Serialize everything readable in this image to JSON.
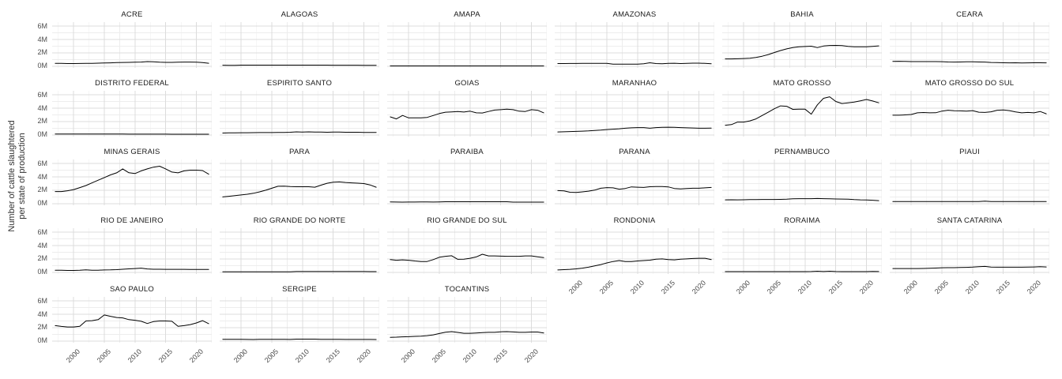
{
  "figure": {
    "y_axis_title_lines": [
      "Number of cattle slaughtered",
      "per state of production"
    ]
  },
  "chart_data": {
    "type": "line",
    "title": "",
    "xlabel": "",
    "ylabel": "Number of cattle slaughtered per state of production",
    "facet_by": "state",
    "facet_columns": 6,
    "legend": "none",
    "grid": true,
    "line_color": "#000000",
    "grid_major_color": "#dcdcdc",
    "grid_minor_color": "#ededed",
    "unit": "millions of cattle (M)",
    "xlim": [
      1996.5,
      2022.5
    ],
    "ylim": [
      -0.25,
      6.6
    ],
    "x_major": [
      2000,
      2005,
      2010,
      2015,
      2020
    ],
    "x_minor": [
      1997.5,
      2002.5,
      2007.5,
      2012.5,
      2017.5,
      2022.5
    ],
    "x_tick_labels": [
      "2000",
      "2005",
      "2010",
      "2015",
      "2020"
    ],
    "y_major": [
      0,
      2,
      4,
      6
    ],
    "y_minor": [
      1,
      3,
      5
    ],
    "y_tick_labels": [
      "0M",
      "2M",
      "4M",
      "6M"
    ],
    "x_years": [
      1997,
      1998,
      1999,
      2000,
      2001,
      2002,
      2003,
      2004,
      2005,
      2006,
      2007,
      2008,
      2009,
      2010,
      2011,
      2012,
      2013,
      2014,
      2015,
      2016,
      2017,
      2018,
      2019,
      2020,
      2021,
      2022
    ],
    "series": [
      {
        "name": "ACRE",
        "values": [
          0.44,
          0.42,
          0.4,
          0.4,
          0.41,
          0.42,
          0.44,
          0.46,
          0.48,
          0.5,
          0.54,
          0.56,
          0.58,
          0.6,
          0.62,
          0.7,
          0.66,
          0.6,
          0.58,
          0.58,
          0.6,
          0.62,
          0.62,
          0.6,
          0.55,
          0.45
        ]
      },
      {
        "name": "ALAGOAS",
        "values": [
          0.15,
          0.14,
          0.13,
          0.16,
          0.16,
          0.16,
          0.16,
          0.16,
          0.16,
          0.16,
          0.16,
          0.16,
          0.16,
          0.16,
          0.16,
          0.16,
          0.16,
          0.16,
          0.15,
          0.15,
          0.15,
          0.15,
          0.15,
          0.14,
          0.14,
          0.14
        ]
      },
      {
        "name": "AMAPA",
        "values": [
          0.05,
          0.05,
          0.05,
          0.05,
          0.05,
          0.05,
          0.05,
          0.05,
          0.05,
          0.05,
          0.05,
          0.05,
          0.05,
          0.05,
          0.05,
          0.05,
          0.05,
          0.05,
          0.05,
          0.05,
          0.05,
          0.05,
          0.05,
          0.05,
          0.05,
          0.05
        ]
      },
      {
        "name": "AMAZONAS",
        "values": [
          0.4,
          0.4,
          0.41,
          0.41,
          0.42,
          0.42,
          0.42,
          0.43,
          0.42,
          0.3,
          0.3,
          0.3,
          0.3,
          0.32,
          0.38,
          0.52,
          0.4,
          0.38,
          0.42,
          0.45,
          0.4,
          0.44,
          0.46,
          0.46,
          0.42,
          0.38
        ]
      },
      {
        "name": "BAHIA",
        "values": [
          1.1,
          1.1,
          1.12,
          1.15,
          1.2,
          1.32,
          1.5,
          1.75,
          2.05,
          2.35,
          2.6,
          2.8,
          2.9,
          2.95,
          3.0,
          2.78,
          3.02,
          3.1,
          3.12,
          3.08,
          2.98,
          2.92,
          2.9,
          2.92,
          2.98,
          3.05
        ]
      },
      {
        "name": "CEARA",
        "values": [
          0.72,
          0.74,
          0.72,
          0.7,
          0.7,
          0.7,
          0.7,
          0.7,
          0.68,
          0.64,
          0.62,
          0.64,
          0.66,
          0.66,
          0.64,
          0.62,
          0.56,
          0.55,
          0.52,
          0.5,
          0.52,
          0.48,
          0.5,
          0.52,
          0.52,
          0.5
        ]
      },
      {
        "name": "DISTRITO FEDERAL",
        "values": [
          0.14,
          0.14,
          0.14,
          0.14,
          0.14,
          0.14,
          0.14,
          0.14,
          0.14,
          0.13,
          0.13,
          0.13,
          0.12,
          0.12,
          0.12,
          0.12,
          0.12,
          0.12,
          0.12,
          0.11,
          0.11,
          0.11,
          0.1,
          0.1,
          0.1,
          0.1
        ]
      },
      {
        "name": "ESPIRITO SANTO",
        "values": [
          0.28,
          0.3,
          0.32,
          0.33,
          0.33,
          0.34,
          0.35,
          0.35,
          0.35,
          0.36,
          0.38,
          0.4,
          0.46,
          0.42,
          0.46,
          0.44,
          0.42,
          0.4,
          0.43,
          0.42,
          0.4,
          0.4,
          0.4,
          0.38,
          0.38,
          0.38
        ]
      },
      {
        "name": "GOIAS",
        "values": [
          2.7,
          2.4,
          2.92,
          2.55,
          2.55,
          2.55,
          2.62,
          2.9,
          3.2,
          3.4,
          3.45,
          3.5,
          3.42,
          3.55,
          3.3,
          3.28,
          3.5,
          3.72,
          3.78,
          3.85,
          3.78,
          3.55,
          3.5,
          3.78,
          3.7,
          3.3
        ]
      },
      {
        "name": "MARANHAO",
        "values": [
          0.45,
          0.47,
          0.5,
          0.53,
          0.56,
          0.6,
          0.66,
          0.72,
          0.8,
          0.86,
          0.92,
          1.0,
          1.06,
          1.1,
          1.1,
          1.0,
          1.1,
          1.14,
          1.15,
          1.14,
          1.1,
          1.06,
          1.04,
          1.0,
          1.0,
          1.02
        ]
      },
      {
        "name": "MATO GROSSO",
        "values": [
          1.45,
          1.55,
          1.92,
          1.92,
          2.1,
          2.4,
          2.9,
          3.4,
          3.92,
          4.35,
          4.28,
          3.82,
          3.85,
          3.85,
          3.1,
          4.5,
          5.48,
          5.7,
          5.0,
          4.7,
          4.8,
          4.92,
          5.1,
          5.3,
          5.08,
          4.8
        ]
      },
      {
        "name": "MATO GROSSO DO SUL",
        "values": [
          2.95,
          2.95,
          3.0,
          3.06,
          3.3,
          3.35,
          3.3,
          3.32,
          3.56,
          3.7,
          3.62,
          3.6,
          3.56,
          3.64,
          3.4,
          3.36,
          3.46,
          3.7,
          3.74,
          3.64,
          3.44,
          3.3,
          3.36,
          3.3,
          3.5,
          3.16
        ]
      },
      {
        "name": "MINAS GERAIS",
        "values": [
          1.8,
          1.8,
          1.92,
          2.1,
          2.4,
          2.7,
          3.1,
          3.5,
          3.9,
          4.3,
          4.6,
          5.2,
          4.62,
          4.5,
          4.9,
          5.2,
          5.45,
          5.6,
          5.2,
          4.72,
          4.6,
          4.9,
          5.0,
          5.0,
          4.95,
          4.4
        ]
      },
      {
        "name": "PARA",
        "values": [
          1.0,
          1.1,
          1.2,
          1.3,
          1.4,
          1.55,
          1.76,
          2.0,
          2.3,
          2.6,
          2.62,
          2.56,
          2.52,
          2.52,
          2.52,
          2.46,
          2.76,
          3.05,
          3.2,
          3.25,
          3.16,
          3.1,
          3.06,
          3.0,
          2.8,
          2.45
        ]
      },
      {
        "name": "PARAIBA",
        "values": [
          0.26,
          0.24,
          0.22,
          0.24,
          0.24,
          0.26,
          0.25,
          0.24,
          0.26,
          0.28,
          0.28,
          0.28,
          0.28,
          0.28,
          0.28,
          0.28,
          0.28,
          0.28,
          0.28,
          0.28,
          0.22,
          0.22,
          0.22,
          0.22,
          0.22,
          0.22
        ]
      },
      {
        "name": "PARANA",
        "values": [
          1.95,
          1.9,
          1.7,
          1.66,
          1.76,
          1.86,
          2.02,
          2.3,
          2.4,
          2.36,
          2.16,
          2.26,
          2.5,
          2.46,
          2.42,
          2.52,
          2.56,
          2.56,
          2.5,
          2.26,
          2.2,
          2.26,
          2.3,
          2.3,
          2.36,
          2.42
        ]
      },
      {
        "name": "PERNAMBUCO",
        "values": [
          0.56,
          0.58,
          0.56,
          0.58,
          0.6,
          0.6,
          0.62,
          0.62,
          0.62,
          0.63,
          0.66,
          0.72,
          0.74,
          0.74,
          0.74,
          0.76,
          0.74,
          0.72,
          0.7,
          0.68,
          0.66,
          0.6,
          0.56,
          0.55,
          0.5,
          0.45
        ]
      },
      {
        "name": "PIAUI",
        "values": [
          0.3,
          0.3,
          0.3,
          0.3,
          0.3,
          0.3,
          0.3,
          0.3,
          0.3,
          0.3,
          0.3,
          0.3,
          0.3,
          0.3,
          0.3,
          0.38,
          0.32,
          0.3,
          0.3,
          0.3,
          0.3,
          0.3,
          0.3,
          0.3,
          0.3,
          0.3
        ]
      },
      {
        "name": "RIO DE JANEIRO",
        "values": [
          0.3,
          0.3,
          0.28,
          0.28,
          0.3,
          0.36,
          0.3,
          0.32,
          0.35,
          0.36,
          0.4,
          0.46,
          0.52,
          0.56,
          0.62,
          0.5,
          0.46,
          0.46,
          0.45,
          0.45,
          0.45,
          0.45,
          0.44,
          0.44,
          0.43,
          0.42
        ]
      },
      {
        "name": "RIO GRANDE DO NORTE",
        "values": [
          0.08,
          0.08,
          0.08,
          0.08,
          0.08,
          0.08,
          0.08,
          0.08,
          0.08,
          0.08,
          0.08,
          0.08,
          0.12,
          0.12,
          0.12,
          0.12,
          0.12,
          0.12,
          0.12,
          0.12,
          0.12,
          0.12,
          0.12,
          0.12,
          0.1,
          0.1
        ]
      },
      {
        "name": "RIO GRANDE DO SUL",
        "values": [
          1.9,
          1.8,
          1.86,
          1.8,
          1.7,
          1.62,
          1.62,
          1.9,
          2.25,
          2.4,
          2.48,
          1.95,
          1.96,
          2.1,
          2.3,
          2.7,
          2.46,
          2.46,
          2.42,
          2.4,
          2.4,
          2.4,
          2.46,
          2.46,
          2.32,
          2.2
        ]
      },
      {
        "name": "RONDONIA",
        "values": [
          0.35,
          0.4,
          0.45,
          0.52,
          0.62,
          0.76,
          0.95,
          1.15,
          1.4,
          1.62,
          1.76,
          1.6,
          1.62,
          1.7,
          1.76,
          1.82,
          1.96,
          2.0,
          1.9,
          1.86,
          1.96,
          2.0,
          2.06,
          2.1,
          2.1,
          1.9
        ]
      },
      {
        "name": "RORAIMA",
        "values": [
          0.1,
          0.1,
          0.1,
          0.1,
          0.1,
          0.1,
          0.1,
          0.1,
          0.1,
          0.1,
          0.1,
          0.1,
          0.1,
          0.1,
          0.12,
          0.16,
          0.12,
          0.16,
          0.12,
          0.1,
          0.1,
          0.1,
          0.1,
          0.1,
          0.14,
          0.12
        ]
      },
      {
        "name": "SANTA CATARINA",
        "values": [
          0.56,
          0.56,
          0.56,
          0.56,
          0.56,
          0.58,
          0.6,
          0.64,
          0.68,
          0.7,
          0.7,
          0.72,
          0.74,
          0.78,
          0.84,
          0.88,
          0.78,
          0.76,
          0.76,
          0.76,
          0.76,
          0.76,
          0.78,
          0.8,
          0.84,
          0.8
        ]
      },
      {
        "name": "SAO PAULO",
        "values": [
          2.3,
          2.18,
          2.1,
          2.1,
          2.2,
          3.0,
          3.05,
          3.2,
          3.9,
          3.7,
          3.52,
          3.46,
          3.2,
          3.1,
          2.95,
          2.62,
          2.9,
          3.0,
          3.0,
          2.95,
          2.2,
          2.3,
          2.45,
          2.7,
          3.05,
          2.6
        ]
      },
      {
        "name": "SERGIPE",
        "values": [
          0.26,
          0.26,
          0.26,
          0.26,
          0.24,
          0.22,
          0.26,
          0.26,
          0.26,
          0.26,
          0.26,
          0.24,
          0.28,
          0.28,
          0.28,
          0.28,
          0.26,
          0.26,
          0.26,
          0.26,
          0.24,
          0.24,
          0.24,
          0.24,
          0.24,
          0.22
        ]
      },
      {
        "name": "TOCANTINS",
        "values": [
          0.55,
          0.58,
          0.62,
          0.65,
          0.7,
          0.72,
          0.8,
          0.92,
          1.12,
          1.32,
          1.4,
          1.28,
          1.16,
          1.15,
          1.2,
          1.26,
          1.3,
          1.3,
          1.38,
          1.4,
          1.36,
          1.3,
          1.3,
          1.35,
          1.35,
          1.2
        ]
      }
    ]
  }
}
